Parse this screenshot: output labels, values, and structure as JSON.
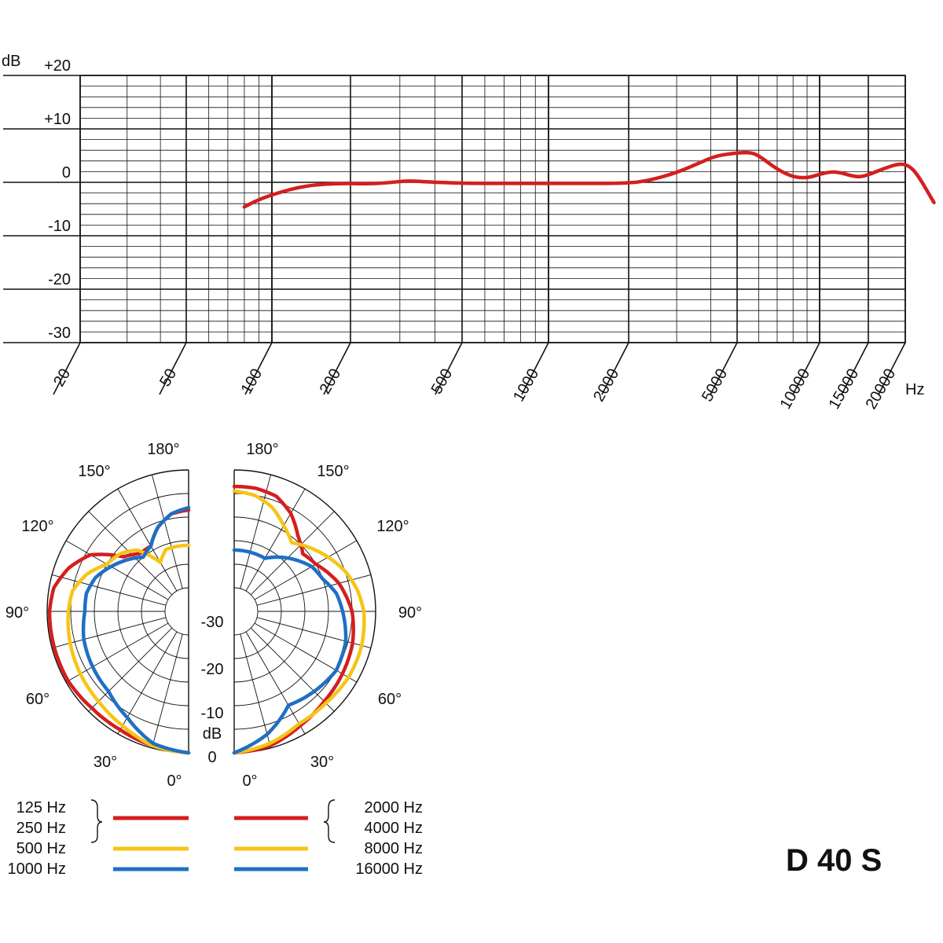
{
  "model_label": "D 40 S",
  "colors": {
    "red": "#d41f1f",
    "yellow": "#f5c518",
    "blue": "#1f6fc4",
    "grid": "#111111",
    "minor_grid": "#111111"
  },
  "chart_data": [
    {
      "type": "line",
      "ylabel": "dB",
      "xlabel": "Hz",
      "x_scale": "log",
      "xlim": [
        20,
        20000
      ],
      "ylim": [
        -30,
        20
      ],
      "y_ticks": [
        {
          "v": 20,
          "t": "+20"
        },
        {
          "v": 10,
          "t": "+10"
        },
        {
          "v": 0,
          "t": "0"
        },
        {
          "v": -10,
          "t": "-10"
        },
        {
          "v": -20,
          "t": "-20"
        },
        {
          "v": -30,
          "t": "-30"
        }
      ],
      "x_ticks": [
        "20",
        "50",
        "100",
        "200",
        "500",
        "1000",
        "2000",
        "5000",
        "10000",
        "15000",
        "20000"
      ],
      "grid": true,
      "series": [
        {
          "color": "#d41f1f",
          "points": [
            [
              80,
              -4.6
            ],
            [
              90,
              -3.2
            ],
            [
              105,
              -2.0
            ],
            [
              130,
              -0.8
            ],
            [
              160,
              -0.3
            ],
            [
              200,
              -0.2
            ],
            [
              230,
              -0.3
            ],
            [
              270,
              -0.1
            ],
            [
              320,
              0.3
            ],
            [
              370,
              0.1
            ],
            [
              500,
              -0.2
            ],
            [
              800,
              -0.2
            ],
            [
              1200,
              -0.2
            ],
            [
              2000,
              -0.2
            ],
            [
              2400,
              0.4
            ],
            [
              3000,
              1.8
            ],
            [
              3700,
              3.8
            ],
            [
              4200,
              5.0
            ],
            [
              5000,
              5.5
            ],
            [
              5600,
              5.6
            ],
            [
              6000,
              5.0
            ],
            [
              7000,
              2.4
            ],
            [
              8000,
              1.0
            ],
            [
              9000,
              0.8
            ],
            [
              10000,
              1.5
            ],
            [
              11000,
              2.0
            ],
            [
              12000,
              1.8
            ],
            [
              13000,
              1.2
            ],
            [
              14000,
              1.0
            ],
            [
              15000,
              1.4
            ],
            [
              17000,
              2.6
            ],
            [
              19000,
              3.5
            ],
            [
              20500,
              3.2
            ],
            [
              22000,
              1.5
            ],
            [
              25000,
              -3.8
            ]
          ]
        }
      ]
    },
    {
      "type": "polar",
      "angle_labels": [
        {
          "deg": 0,
          "t": "0°"
        },
        {
          "deg": 30,
          "t": "30°"
        },
        {
          "deg": 60,
          "t": "60°"
        },
        {
          "deg": 90,
          "t": "90°"
        },
        {
          "deg": 120,
          "t": "120°"
        },
        {
          "deg": 150,
          "t": "150°"
        },
        {
          "deg": 180,
          "t": "180°"
        }
      ],
      "radial_labels": [
        "0",
        "dB",
        "-10",
        "-20",
        "-30"
      ],
      "r_range_db": [
        -30,
        0
      ],
      "series": [
        {
          "side": "left",
          "name": "125 Hz / 250 Hz",
          "color": "#d41f1f",
          "points": [
            [
              0,
              0
            ],
            [
              15,
              -0.5
            ],
            [
              30,
              -1
            ],
            [
              45,
              -1
            ],
            [
              60,
              -0.5
            ],
            [
              75,
              -0.5
            ],
            [
              90,
              -0.5
            ],
            [
              100,
              -1
            ],
            [
              110,
              -3
            ],
            [
              120,
              -6
            ],
            [
              130,
              -12
            ],
            [
              140,
              -14
            ],
            [
              150,
              -14
            ],
            [
              160,
              -11
            ],
            [
              170,
              -9
            ],
            [
              180,
              -8.5
            ]
          ]
        },
        {
          "side": "left",
          "name": "500 Hz",
          "color": "#f5c518",
          "points": [
            [
              0,
              0
            ],
            [
              15,
              -0.5
            ],
            [
              30,
              -2
            ],
            [
              45,
              -3
            ],
            [
              60,
              -3.5
            ],
            [
              75,
              -4
            ],
            [
              90,
              -4.5
            ],
            [
              100,
              -5
            ],
            [
              110,
              -7
            ],
            [
              120,
              -10
            ],
            [
              130,
              -11
            ],
            [
              140,
              -13
            ],
            [
              150,
              -18
            ],
            [
              160,
              -16
            ],
            [
              170,
              -16
            ],
            [
              180,
              -16
            ]
          ]
        },
        {
          "side": "left",
          "name": "1000 Hz",
          "color": "#1f6fc4",
          "points": [
            [
              0,
              0
            ],
            [
              15,
              -1
            ],
            [
              30,
              -4
            ],
            [
              45,
              -6
            ],
            [
              60,
              -6.5
            ],
            [
              75,
              -7
            ],
            [
              90,
              -8
            ],
            [
              100,
              -8
            ],
            [
              110,
              -9
            ],
            [
              120,
              -11
            ],
            [
              130,
              -13
            ],
            [
              140,
              -15
            ],
            [
              150,
              -14
            ],
            [
              160,
              -11
            ],
            [
              170,
              -9
            ],
            [
              180,
              -8
            ]
          ]
        },
        {
          "side": "right",
          "name": "2000 Hz / 4000 Hz",
          "color": "#d41f1f",
          "points": [
            [
              0,
              0
            ],
            [
              15,
              -0.5
            ],
            [
              30,
              -2
            ],
            [
              45,
              -3
            ],
            [
              60,
              -3.5
            ],
            [
              75,
              -4
            ],
            [
              90,
              -5
            ],
            [
              105,
              -7
            ],
            [
              120,
              -10
            ],
            [
              130,
              -11
            ],
            [
              140,
              -9
            ],
            [
              150,
              -6
            ],
            [
              160,
              -4
            ],
            [
              170,
              -3.5
            ],
            [
              180,
              -3.5
            ]
          ]
        },
        {
          "side": "right",
          "name": "8000 Hz",
          "color": "#f5c518",
          "points": [
            [
              0,
              0
            ],
            [
              15,
              -1
            ],
            [
              30,
              -2.5
            ],
            [
              45,
              -2.5
            ],
            [
              60,
              -2
            ],
            [
              75,
              -2
            ],
            [
              90,
              -2.5
            ],
            [
              100,
              -3.5
            ],
            [
              110,
              -5
            ],
            [
              120,
              -7
            ],
            [
              130,
              -9
            ],
            [
              140,
              -11
            ],
            [
              150,
              -9
            ],
            [
              160,
              -6.5
            ],
            [
              170,
              -5
            ],
            [
              180,
              -4.5
            ]
          ]
        },
        {
          "side": "right",
          "name": "16000 Hz",
          "color": "#1f6fc4",
          "points": [
            [
              0,
              0
            ],
            [
              15,
              -3
            ],
            [
              30,
              -7
            ],
            [
              45,
              -6
            ],
            [
              60,
              -5
            ],
            [
              75,
              -5.5
            ],
            [
              90,
              -7
            ],
            [
              100,
              -8
            ],
            [
              110,
              -10
            ],
            [
              120,
              -11
            ],
            [
              130,
              -13
            ],
            [
              140,
              -15
            ],
            [
              150,
              -17
            ],
            [
              160,
              -17
            ],
            [
              170,
              -17
            ],
            [
              180,
              -17
            ]
          ]
        }
      ]
    }
  ],
  "legend": {
    "left": [
      {
        "t": "125 Hz",
        "color": "#d41f1f"
      },
      {
        "t": "250 Hz",
        "color": "#d41f1f"
      },
      {
        "t": "500 Hz",
        "color": "#f5c518"
      },
      {
        "t": "1000 Hz",
        "color": "#1f6fc4"
      }
    ],
    "right": [
      {
        "t": "2000 Hz",
        "color": "#d41f1f"
      },
      {
        "t": "4000 Hz",
        "color": "#d41f1f"
      },
      {
        "t": "8000 Hz",
        "color": "#f5c518"
      },
      {
        "t": "16000 Hz",
        "color": "#1f6fc4"
      }
    ]
  }
}
